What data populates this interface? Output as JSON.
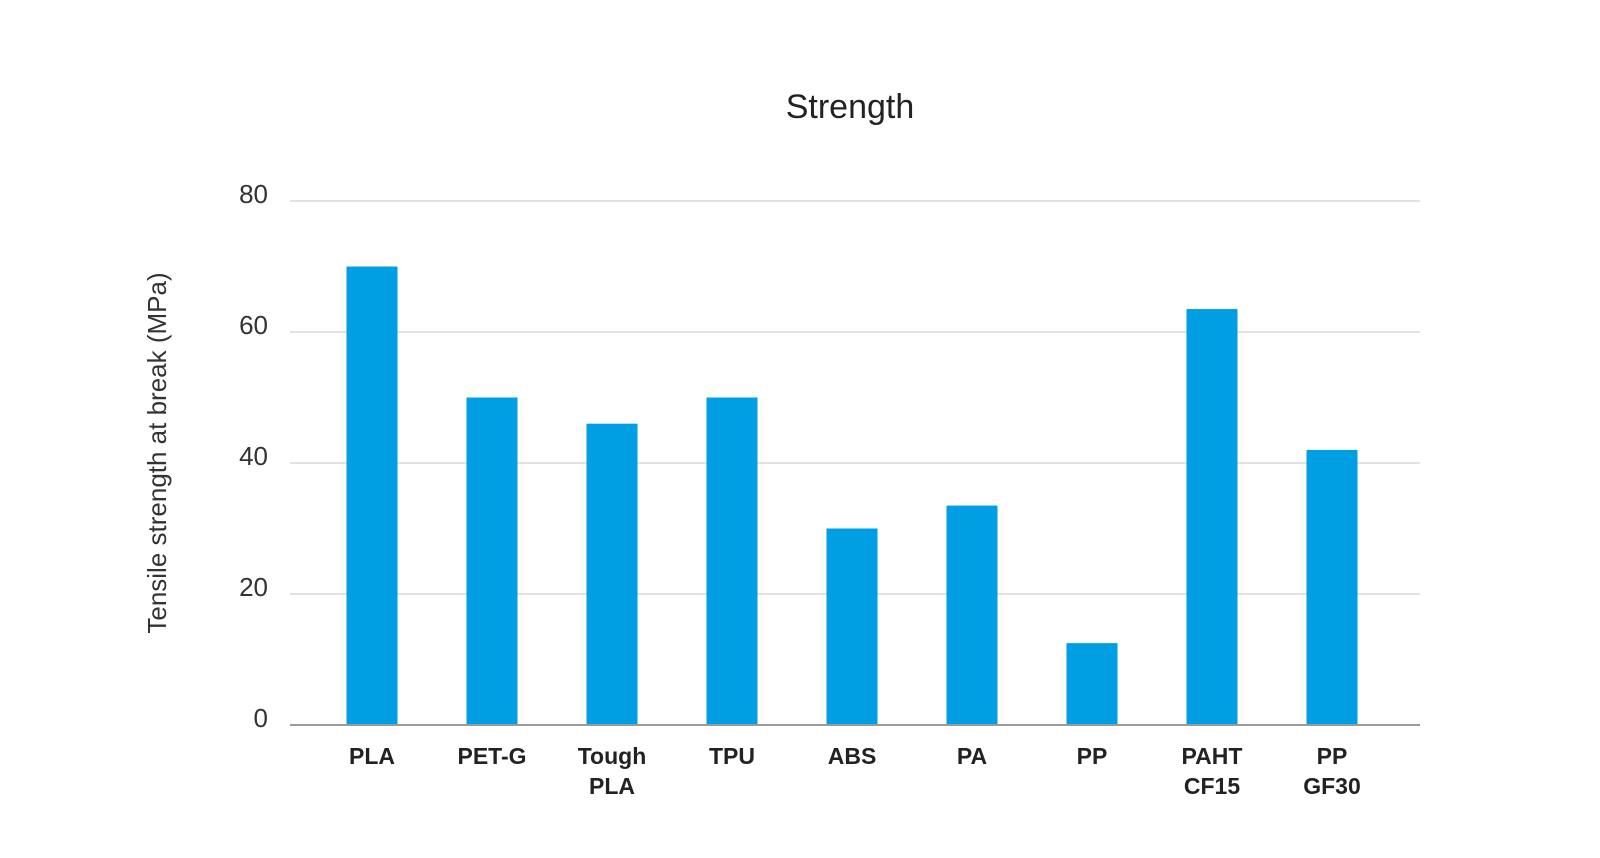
{
  "chart_data": {
    "type": "bar",
    "title": "Strength",
    "xlabel": "",
    "ylabel": "Tensile strength at break (MPa)",
    "categories": [
      [
        "PLA"
      ],
      [
        "PET-G"
      ],
      [
        "Tough",
        "PLA"
      ],
      [
        "TPU"
      ],
      [
        "ABS"
      ],
      [
        "PA"
      ],
      [
        "PP"
      ],
      [
        "PAHT",
        "CF15"
      ],
      [
        "PP",
        "GF30"
      ]
    ],
    "values": [
      70,
      50,
      46,
      50,
      30,
      33.5,
      12.5,
      63.5,
      42
    ],
    "ylim": [
      0,
      80
    ],
    "yticks": [
      0,
      20,
      40,
      60,
      80
    ],
    "grid": true,
    "bar_color": "#009fe3"
  }
}
